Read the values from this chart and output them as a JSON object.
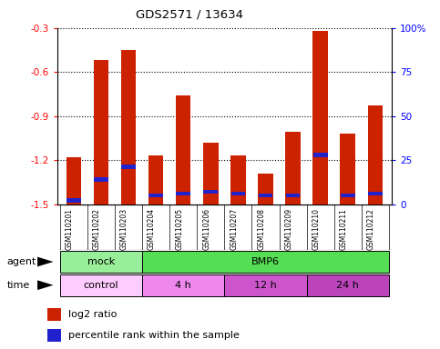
{
  "title": "GDS2571 / 13634",
  "samples": [
    "GSM110201",
    "GSM110202",
    "GSM110203",
    "GSM110204",
    "GSM110205",
    "GSM110206",
    "GSM110207",
    "GSM110208",
    "GSM110209",
    "GSM110210",
    "GSM110211",
    "GSM110212"
  ],
  "log2_ratio": [
    -1.18,
    -0.52,
    -0.45,
    -1.17,
    -0.76,
    -1.08,
    -1.17,
    -1.29,
    -1.01,
    -0.32,
    -1.02,
    -0.83
  ],
  "percentile_rank": [
    2,
    14,
    21,
    5,
    6,
    7,
    6,
    5,
    5,
    28,
    5,
    6
  ],
  "ylim_left": [
    -1.5,
    -0.3
  ],
  "ylim_right": [
    0,
    100
  ],
  "yticks_left": [
    -1.5,
    -1.2,
    -0.9,
    -0.6,
    -0.3
  ],
  "yticks_right": [
    0,
    25,
    50,
    75,
    100
  ],
  "ytick_labels_right": [
    "0",
    "25",
    "50",
    "75",
    "100%"
  ],
  "bar_color": "#cc2200",
  "percentile_color": "#2222cc",
  "bg_color": "#ffffff",
  "agent_groups": [
    {
      "label": "mock",
      "start": 0,
      "end": 3,
      "color": "#99ee99"
    },
    {
      "label": "BMP6",
      "start": 3,
      "end": 12,
      "color": "#55dd55"
    }
  ],
  "time_groups": [
    {
      "label": "control",
      "start": 0,
      "end": 3,
      "color": "#ffccff"
    },
    {
      "label": "4 h",
      "start": 3,
      "end": 6,
      "color": "#ee88ee"
    },
    {
      "label": "12 h",
      "start": 6,
      "end": 9,
      "color": "#cc55cc"
    },
    {
      "label": "24 h",
      "start": 9,
      "end": 12,
      "color": "#bb44bb"
    }
  ],
  "legend_red_label": "log2 ratio",
  "legend_blue_label": "percentile rank within the sample",
  "bar_width": 0.55,
  "cell_color": "#cccccc"
}
